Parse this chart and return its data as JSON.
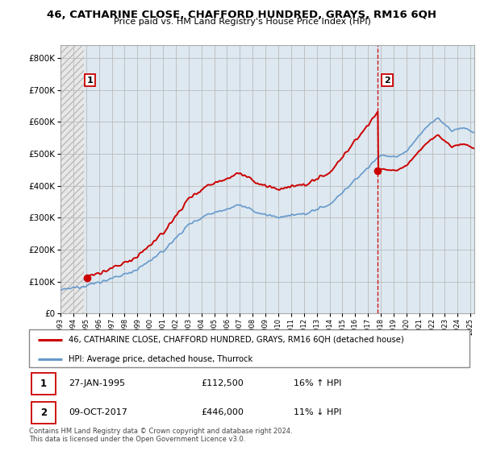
{
  "title": "46, CATHARINE CLOSE, CHAFFORD HUNDRED, GRAYS, RM16 6QH",
  "subtitle": "Price paid vs. HM Land Registry's House Price Index (HPI)",
  "legend_line1": "46, CATHARINE CLOSE, CHAFFORD HUNDRED, GRAYS, RM16 6QH (detached house)",
  "legend_line2": "HPI: Average price, detached house, Thurrock",
  "annotation1_label": "1",
  "annotation1_date": "27-JAN-1995",
  "annotation1_price": "£112,500",
  "annotation1_hpi": "16% ↑ HPI",
  "annotation2_label": "2",
  "annotation2_date": "09-OCT-2017",
  "annotation2_price": "£446,000",
  "annotation2_hpi": "11% ↓ HPI",
  "footer": "Contains HM Land Registry data © Crown copyright and database right 2024.\nThis data is licensed under the Open Government Licence v3.0.",
  "price_color": "#cc0000",
  "hpi_color": "#6699cc",
  "vline_color": "#cc0000",
  "ylim": [
    0,
    840000
  ],
  "yticks": [
    0,
    100000,
    200000,
    300000,
    400000,
    500000,
    600000,
    700000,
    800000
  ],
  "sale1_x": 1995.07,
  "sale1_y": 112500,
  "sale2_x": 2017.77,
  "sale2_y": 446000,
  "xmin": 1993.0,
  "xmax": 2025.3
}
